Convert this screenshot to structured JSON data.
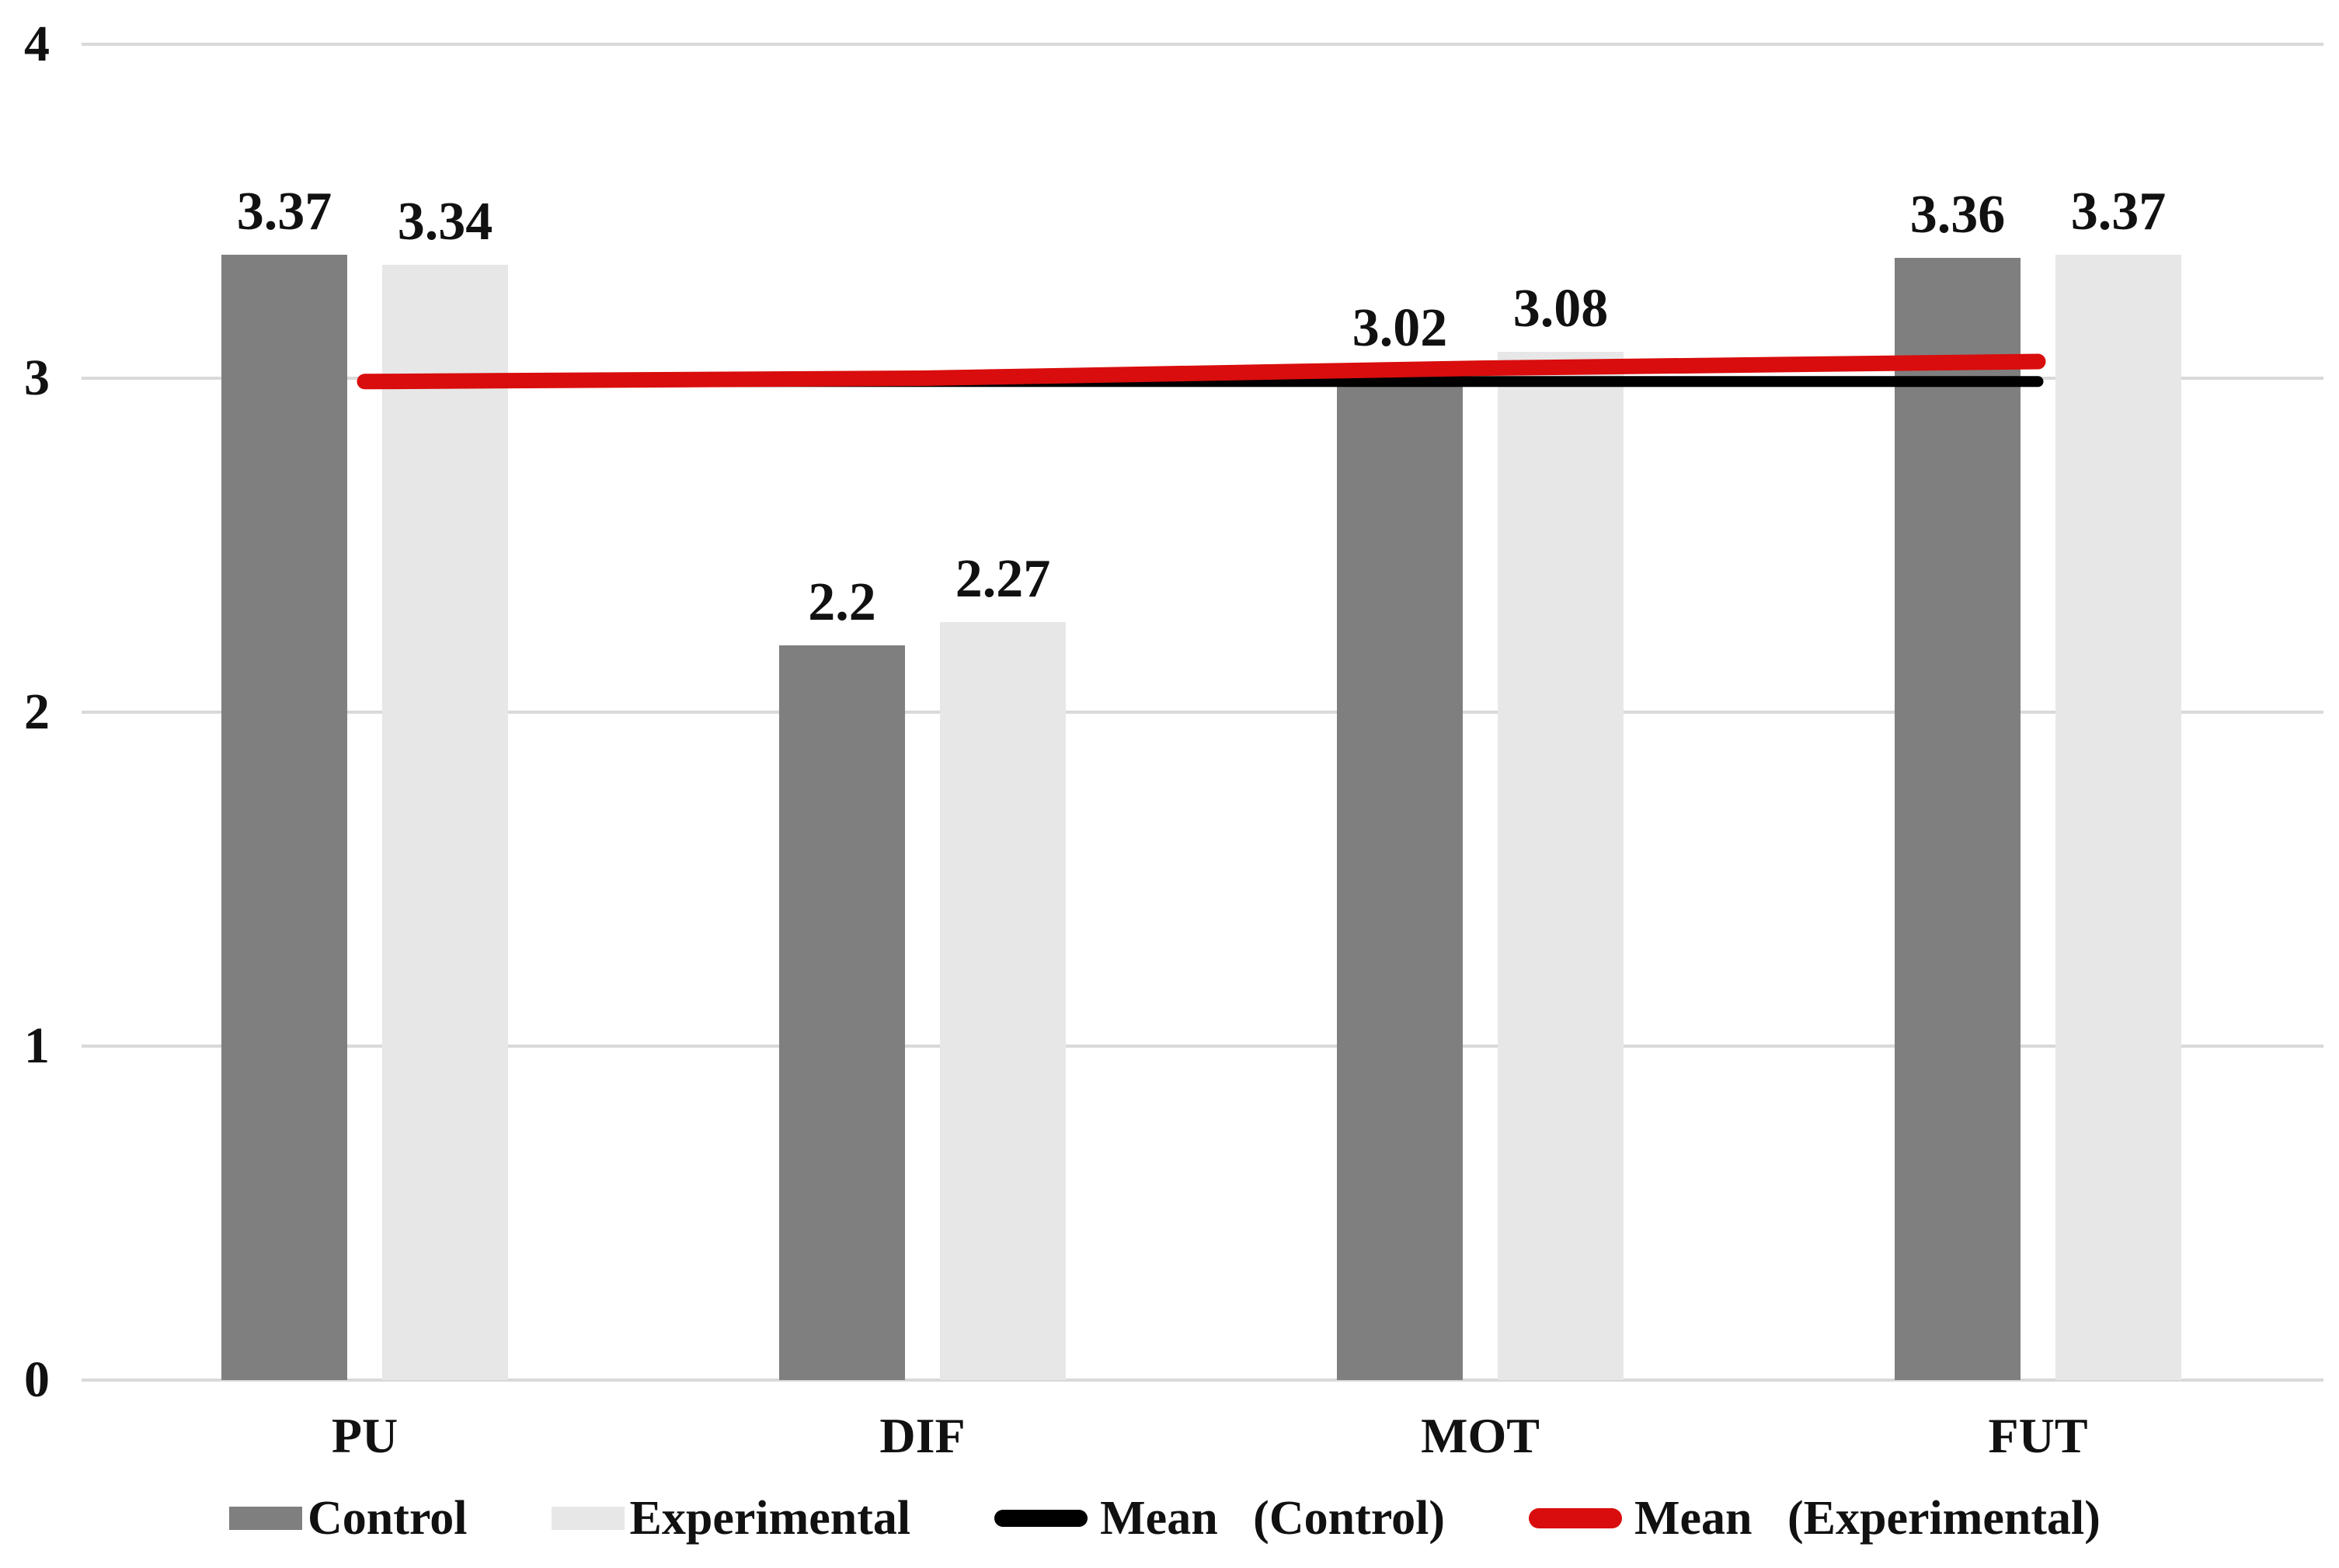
{
  "chart_data": {
    "type": "bar",
    "categories": [
      "PU",
      "DIF",
      "MOT",
      "FUT"
    ],
    "series": [
      {
        "name": "Control",
        "type": "bar",
        "color": "#7f7f7f",
        "values": [
          3.37,
          2.2,
          3.02,
          3.36
        ],
        "labels": [
          "3.37",
          "2.2",
          "3.02",
          "3.36"
        ]
      },
      {
        "name": "Experimental",
        "type": "bar",
        "color": "#e7e7e7",
        "values": [
          3.34,
          2.27,
          3.08,
          3.37
        ],
        "labels": [
          "3.34",
          "2.27",
          "3.08",
          "3.37"
        ]
      },
      {
        "name": "Mean (Control)",
        "type": "line",
        "color": "#000000",
        "values": [
          2.99,
          2.99,
          2.99,
          2.99
        ]
      },
      {
        "name": "Mean (Experimental)",
        "type": "line",
        "color": "#d90d0d",
        "values": [
          2.99,
          3.0,
          3.03,
          3.05
        ]
      }
    ],
    "title": "",
    "xlabel": "",
    "ylabel": "",
    "ylim": [
      0,
      4
    ],
    "yticks": [
      0,
      1,
      2,
      3,
      4
    ],
    "grid": true,
    "gridline_color": "#d9d9d9",
    "legend_position": "bottom"
  }
}
